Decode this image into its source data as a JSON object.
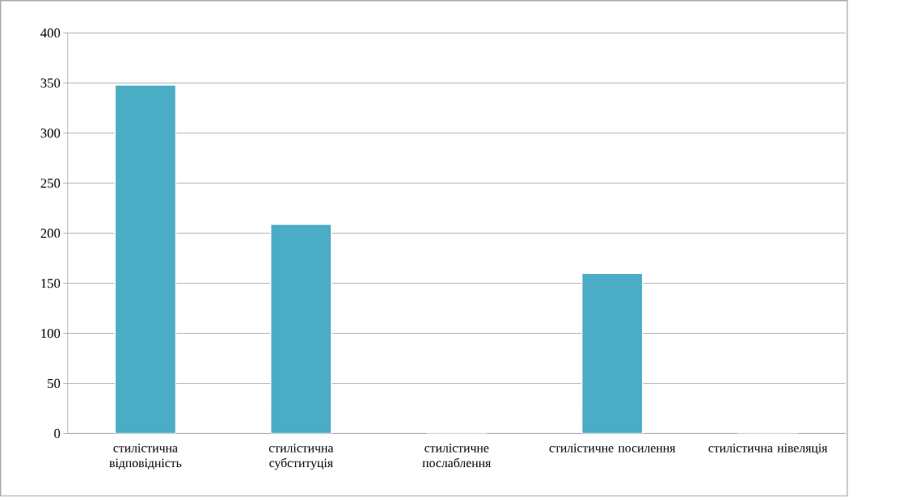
{
  "chart_data": {
    "type": "bar",
    "categories": [
      "стилістична відповідність",
      "стилістична субституція",
      "стилістичне послаблення",
      "стилістичне посилення",
      "стилістична нівеляція"
    ],
    "values": [
      348,
      209,
      0,
      160,
      0
    ],
    "color": "#4bacc6",
    "ylim": [
      0,
      400
    ],
    "yticks": [
      0,
      50,
      100,
      150,
      200,
      250,
      300,
      350,
      400
    ],
    "grid": "y"
  }
}
